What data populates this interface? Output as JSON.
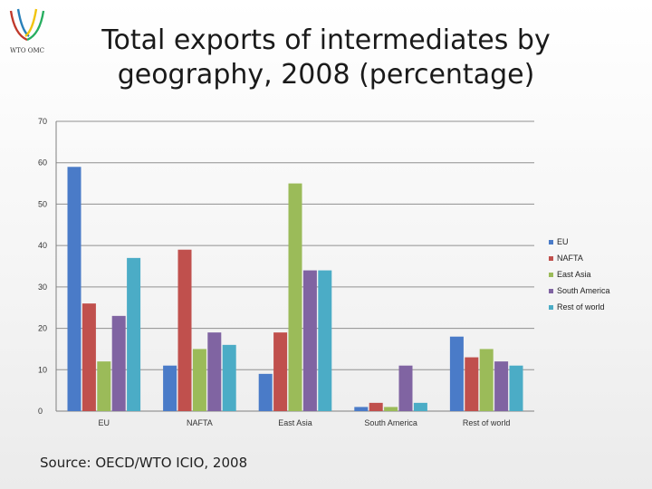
{
  "header": {
    "logo_text": "WTO OMC",
    "title_line1": "Total exports of intermediates by",
    "title_line2": "geography, 2008 (percentage)"
  },
  "footer": {
    "source": "Source: OECD/WTO ICIO, 2008"
  },
  "colors": {
    "series": [
      "#4a7bc8",
      "#c0504d",
      "#9bbb59",
      "#8064a2",
      "#4bacc6"
    ],
    "grid": "#909090"
  },
  "chart_data": {
    "type": "bar",
    "title": "Total exports of intermediates by geography, 2008 (percentage)",
    "categories": [
      "EU",
      "NAFTA",
      "East Asia",
      "South America",
      "Rest of world"
    ],
    "series": [
      {
        "name": "EU",
        "values": [
          59,
          11,
          9,
          1,
          18
        ]
      },
      {
        "name": "NAFTA",
        "values": [
          26,
          39,
          19,
          2,
          13
        ]
      },
      {
        "name": "East Asia",
        "values": [
          12,
          15,
          55,
          1,
          15
        ]
      },
      {
        "name": "South America",
        "values": [
          23,
          19,
          34,
          11,
          12
        ]
      },
      {
        "name": "Rest of world",
        "values": [
          37,
          16,
          34,
          2,
          11
        ]
      }
    ],
    "ylim": [
      0,
      70
    ],
    "yticks": [
      0,
      10,
      20,
      30,
      40,
      50,
      60,
      70
    ],
    "grid": true,
    "legend_position": "right"
  }
}
